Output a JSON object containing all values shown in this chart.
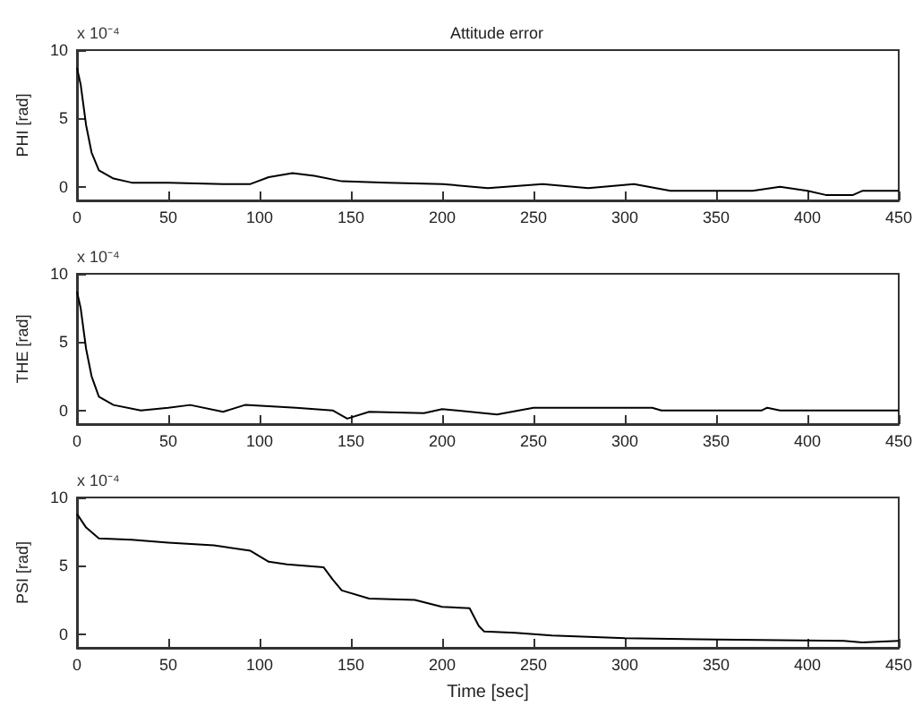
{
  "chart_data": [
    {
      "type": "line",
      "title": "Attitude error",
      "ylabel": "PHI [rad]",
      "annotations": [
        "x 10⁻⁴"
      ],
      "xlim": [
        0,
        450
      ],
      "xticks": [
        0,
        50,
        100,
        150,
        200,
        250,
        300,
        350,
        400,
        450
      ],
      "ylim": [
        -1,
        10
      ],
      "yticks": [
        0,
        5,
        10
      ],
      "grid": false,
      "marker": "none",
      "line_style": "solid",
      "series": [
        {
          "color": "#000000",
          "x": [
            0,
            2,
            5,
            8,
            12,
            20,
            30,
            50,
            80,
            95,
            105,
            118,
            130,
            145,
            170,
            200,
            225,
            255,
            280,
            305,
            325,
            370,
            385,
            400,
            410,
            425,
            430,
            450
          ],
          "values": [
            8.7,
            7.5,
            4.5,
            2.5,
            1.2,
            0.6,
            0.3,
            0.3,
            0.2,
            0.2,
            0.7,
            1.0,
            0.8,
            0.4,
            0.3,
            0.2,
            -0.1,
            0.2,
            -0.1,
            0.2,
            -0.3,
            -0.3,
            0.0,
            -0.3,
            -0.6,
            -0.6,
            -0.3,
            -0.3
          ]
        }
      ]
    },
    {
      "type": "line",
      "ylabel": "THE [rad]",
      "annotations": [
        "x 10⁻⁴"
      ],
      "xlim": [
        0,
        450
      ],
      "xticks": [
        0,
        50,
        100,
        150,
        200,
        250,
        300,
        350,
        400,
        450
      ],
      "ylim": [
        -1,
        10
      ],
      "yticks": [
        0,
        5,
        10
      ],
      "grid": false,
      "marker": "none",
      "line_style": "solid",
      "series": [
        {
          "color": "#000000",
          "x": [
            0,
            2,
            5,
            8,
            12,
            20,
            35,
            50,
            62,
            80,
            92,
            120,
            140,
            148,
            160,
            190,
            200,
            230,
            250,
            315,
            320,
            375,
            378,
            385,
            450
          ],
          "values": [
            8.7,
            7.5,
            4.5,
            2.5,
            1.0,
            0.4,
            0,
            0.2,
            0.4,
            -0.1,
            0.4,
            0.2,
            0,
            -0.6,
            -0.1,
            -0.2,
            0.1,
            -0.3,
            0.2,
            0.2,
            0,
            0,
            0.2,
            0,
            0
          ]
        }
      ]
    },
    {
      "type": "line",
      "ylabel": "PSI [rad]",
      "xlabel": "Time [sec]",
      "annotations": [
        "x 10⁻⁴"
      ],
      "xlim": [
        0,
        450
      ],
      "xticks": [
        0,
        50,
        100,
        150,
        200,
        250,
        300,
        350,
        400,
        450
      ],
      "ylim": [
        -1,
        10
      ],
      "yticks": [
        0,
        5,
        10
      ],
      "grid": false,
      "marker": "none",
      "line_style": "solid",
      "series": [
        {
          "color": "#000000",
          "x": [
            0,
            5,
            12,
            30,
            50,
            75,
            95,
            105,
            115,
            135,
            140,
            145,
            160,
            185,
            200,
            215,
            220,
            223,
            240,
            260,
            300,
            350,
            420,
            430,
            450
          ],
          "values": [
            8.8,
            7.8,
            7.0,
            6.9,
            6.7,
            6.5,
            6.1,
            5.3,
            5.1,
            4.9,
            4.0,
            3.2,
            2.6,
            2.5,
            2.0,
            1.9,
            0.6,
            0.2,
            0.1,
            -0.1,
            -0.3,
            -0.4,
            -0.5,
            -0.6,
            -0.5
          ]
        }
      ]
    }
  ]
}
